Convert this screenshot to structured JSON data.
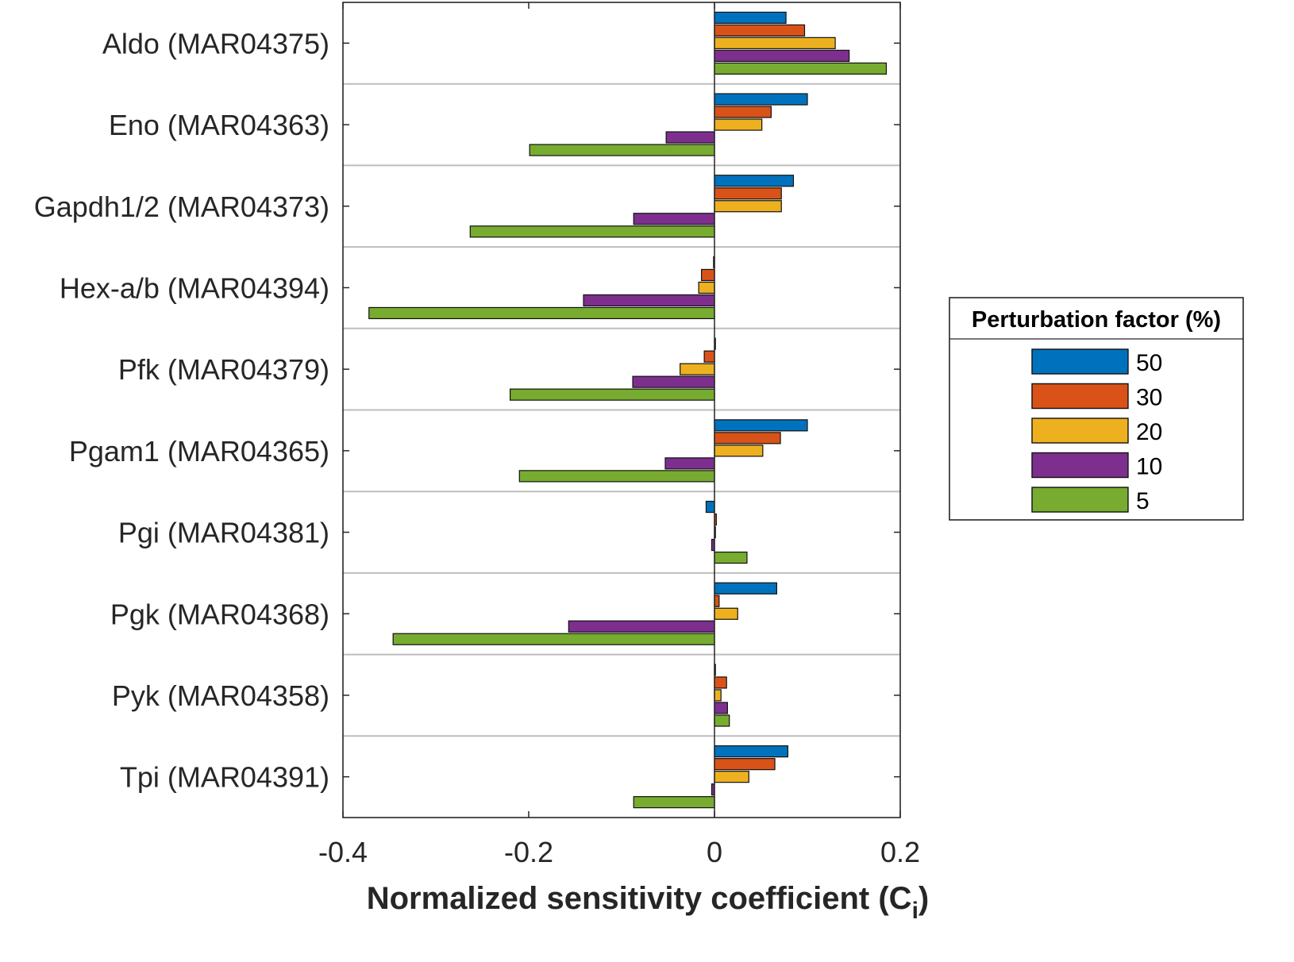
{
  "chart_data": {
    "type": "bar",
    "orientation": "horizontal",
    "categories": [
      "Aldo (MAR04375)",
      "Eno (MAR04363)",
      "Gapdh1/2 (MAR04373)",
      "Hex-a/b (MAR04394)",
      "Pfk (MAR04379)",
      "Pgam1 (MAR04365)",
      "Pgi (MAR04381)",
      "Pgk (MAR04368)",
      "Pyk (MAR04358)",
      "Tpi (MAR04391)"
    ],
    "series": [
      {
        "name": "50",
        "color": "#0072BD",
        "values": [
          0.077,
          0.1,
          0.085,
          -0.001,
          0.0,
          0.1,
          -0.009,
          0.067,
          0.001,
          0.079
        ]
      },
      {
        "name": "30",
        "color": "#D95319",
        "values": [
          0.097,
          0.061,
          0.072,
          -0.014,
          -0.011,
          0.071,
          0.002,
          0.005,
          0.013,
          0.065
        ]
      },
      {
        "name": "20",
        "color": "#EDB120",
        "values": [
          0.13,
          0.051,
          0.072,
          -0.017,
          -0.037,
          0.052,
          0.001,
          0.025,
          0.007,
          0.037
        ]
      },
      {
        "name": "10",
        "color": "#7E2F8E",
        "values": [
          0.145,
          -0.052,
          -0.087,
          -0.141,
          -0.088,
          -0.053,
          -0.003,
          -0.157,
          0.014,
          -0.003
        ]
      },
      {
        "name": "5",
        "color": "#77AC30",
        "values": [
          0.185,
          -0.199,
          -0.263,
          -0.372,
          -0.22,
          -0.21,
          0.035,
          -0.346,
          0.016,
          -0.087
        ]
      }
    ],
    "xlim": [
      -0.4,
      0.2
    ],
    "xticks": [
      "-0.4",
      "-0.2",
      "0",
      "0.2"
    ],
    "xlabel": "Normalized sensitivity coefficient (C",
    "xlabel_subscript": "i",
    "xlabel_close": ")",
    "ylabel": "",
    "grid": "horizontal separators between categories",
    "legend": {
      "title": "Perturbation factor (%)",
      "placement": "right",
      "entries": [
        "50",
        "30",
        "20",
        "10",
        "5"
      ]
    }
  }
}
